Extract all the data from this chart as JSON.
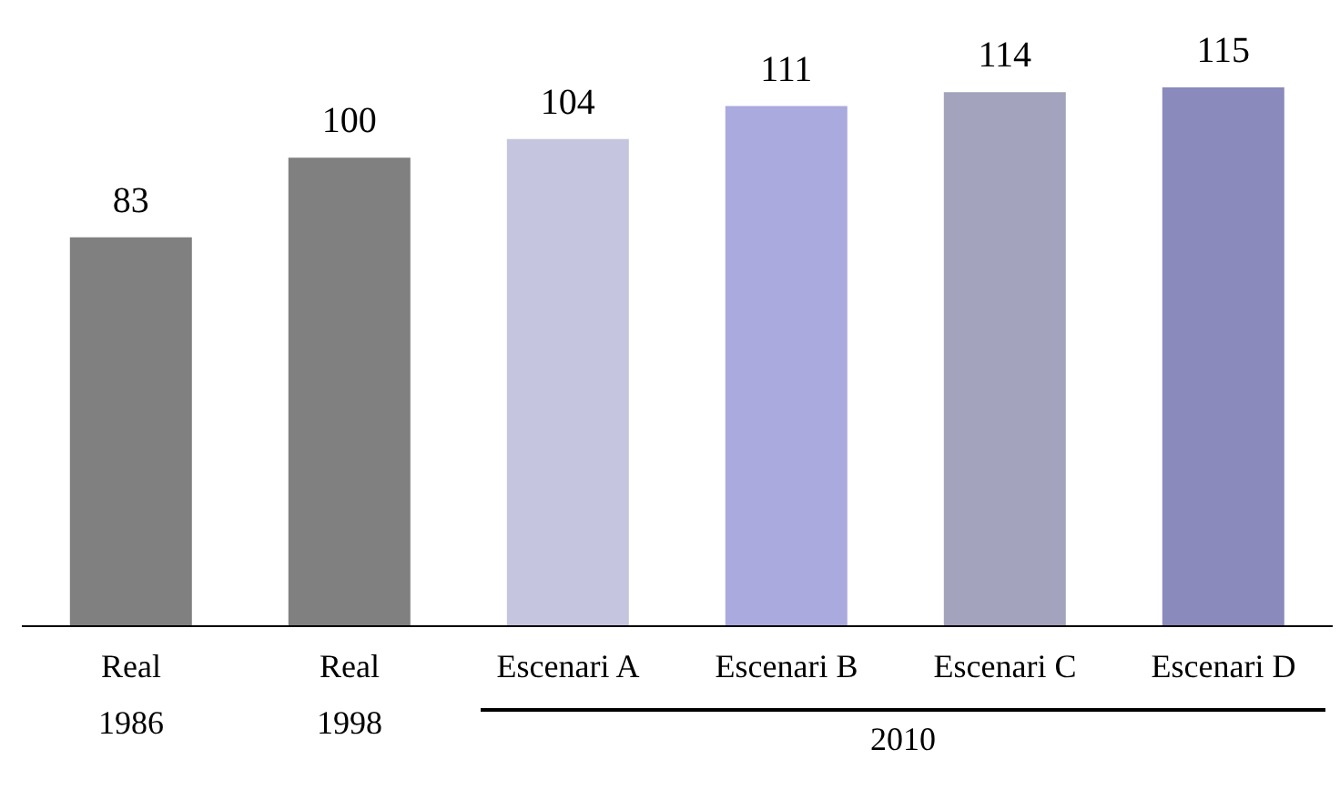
{
  "chart_data": {
    "type": "bar",
    "categories": [
      "Real\n1986",
      "Real\n1998",
      "Escenari A",
      "Escenari B",
      "Escenari C",
      "Escenari D"
    ],
    "values": [
      83,
      100,
      104,
      111,
      114,
      115
    ],
    "colors": [
      "#808080",
      "#808080",
      "#c5c5df",
      "#abaade",
      "#a3a3bd",
      "#8a8abd"
    ],
    "data_labels": true,
    "annotations": [
      "2010"
    ]
  }
}
